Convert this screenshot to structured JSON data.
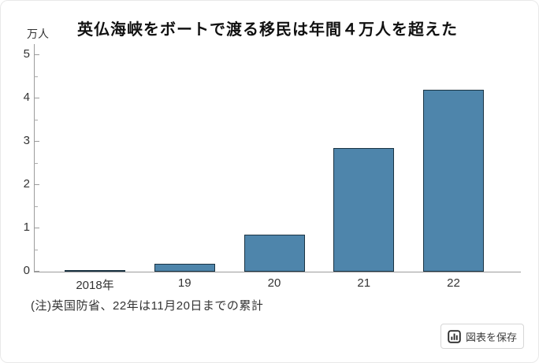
{
  "title": "英仏海峡をボートで渡る移民は年間４万人を超えた",
  "unit_label": "万人",
  "note": "(注)英国防省、22年は11月20日までの累計",
  "save_button": {
    "label": "図表を保存",
    "icon": "bar-chart-icon"
  },
  "colors": {
    "bar_fill": "#4e85ab",
    "bar_border": "#1b3443",
    "axis": "#9b9b9b",
    "text": "#333333"
  },
  "chart_data": {
    "type": "bar",
    "categories": [
      "2018年",
      "19",
      "20",
      "21",
      "22"
    ],
    "values": [
      0.03,
      0.18,
      0.85,
      2.85,
      4.2
    ],
    "title": "英仏海峡をボートで渡る移民は年間４万人を超えた",
    "xlabel": "",
    "ylabel": "万人",
    "ylim": [
      0,
      5
    ],
    "yticks": [
      0,
      1,
      2,
      3,
      4,
      5
    ],
    "minor_tick_interval": 0.5,
    "grid": false,
    "legend": "none"
  }
}
